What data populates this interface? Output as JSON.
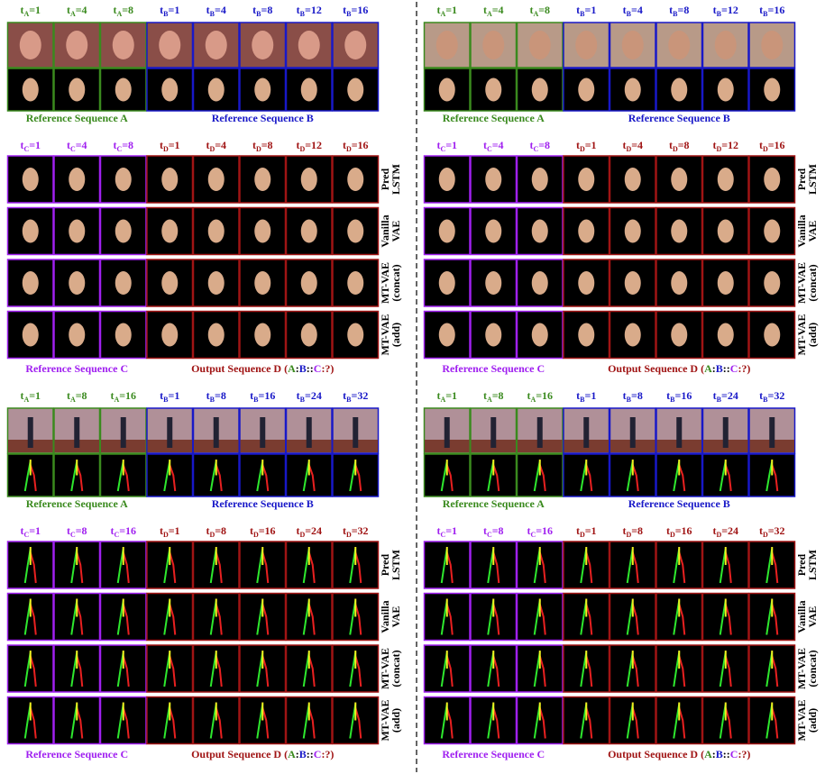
{
  "panels": [
    {
      "kind": "face",
      "top_labels": [
        {
          "t": "t",
          "sub": "A",
          "eq": "=1"
        },
        {
          "t": "t",
          "sub": "A",
          "eq": "=4"
        },
        {
          "t": "t",
          "sub": "A",
          "eq": "=8"
        },
        {
          "t": "t",
          "sub": "B",
          "eq": "=1"
        },
        {
          "t": "t",
          "sub": "B",
          "eq": "=4"
        },
        {
          "t": "t",
          "sub": "B",
          "eq": "=8"
        },
        {
          "t": "t",
          "sub": "B",
          "eq": "=12"
        },
        {
          "t": "t",
          "sub": "B",
          "eq": "=16"
        }
      ],
      "top_captions": [
        "Reference Sequence A",
        "Reference Sequence B"
      ],
      "bottom_labels": [
        {
          "t": "t",
          "sub": "C",
          "eq": "=1"
        },
        {
          "t": "t",
          "sub": "C",
          "eq": "=4"
        },
        {
          "t": "t",
          "sub": "C",
          "eq": "=8"
        },
        {
          "t": "t",
          "sub": "D",
          "eq": "=1"
        },
        {
          "t": "t",
          "sub": "D",
          "eq": "=4"
        },
        {
          "t": "t",
          "sub": "D",
          "eq": "=8"
        },
        {
          "t": "t",
          "sub": "D",
          "eq": "=12"
        },
        {
          "t": "t",
          "sub": "D",
          "eq": "=16"
        }
      ],
      "row_labels": [
        [
          "Pred",
          "LSTM"
        ],
        [
          "Vanilla",
          "VAE"
        ],
        [
          "MT-VAE",
          "(concat)"
        ],
        [
          "MT-VAE",
          "(add)"
        ]
      ],
      "caption_c": "Reference Sequence C",
      "caption_d": [
        "Output Sequence D (",
        "A",
        ":",
        "B",
        "::",
        "C",
        ":?)"
      ]
    },
    {
      "kind": "face",
      "top_labels": [
        {
          "t": "t",
          "sub": "A",
          "eq": "=1"
        },
        {
          "t": "t",
          "sub": "A",
          "eq": "=4"
        },
        {
          "t": "t",
          "sub": "A",
          "eq": "=8"
        },
        {
          "t": "t",
          "sub": "B",
          "eq": "=1"
        },
        {
          "t": "t",
          "sub": "B",
          "eq": "=4"
        },
        {
          "t": "t",
          "sub": "B",
          "eq": "=8"
        },
        {
          "t": "t",
          "sub": "B",
          "eq": "=12"
        },
        {
          "t": "t",
          "sub": "B",
          "eq": "=16"
        }
      ],
      "top_captions": [
        "Reference Sequence A",
        "Reference Sequence B"
      ],
      "bottom_labels": [
        {
          "t": "t",
          "sub": "C",
          "eq": "=1"
        },
        {
          "t": "t",
          "sub": "C",
          "eq": "=4"
        },
        {
          "t": "t",
          "sub": "C",
          "eq": "=8"
        },
        {
          "t": "t",
          "sub": "D",
          "eq": "=1"
        },
        {
          "t": "t",
          "sub": "D",
          "eq": "=4"
        },
        {
          "t": "t",
          "sub": "D",
          "eq": "=8"
        },
        {
          "t": "t",
          "sub": "D",
          "eq": "=12"
        },
        {
          "t": "t",
          "sub": "D",
          "eq": "=16"
        }
      ],
      "row_labels": [
        [
          "Pred",
          "LSTM"
        ],
        [
          "Vanilla",
          "VAE"
        ],
        [
          "MT-VAE",
          "(concat)"
        ],
        [
          "MT-VAE",
          "(add)"
        ]
      ],
      "caption_c": "Reference Sequence C",
      "caption_d": [
        "Output Sequence D (",
        "A",
        ":",
        "B",
        "::",
        "C",
        ":?)"
      ]
    },
    {
      "kind": "pose",
      "top_labels": [
        {
          "t": "t",
          "sub": "A",
          "eq": "=1"
        },
        {
          "t": "t",
          "sub": "A",
          "eq": "=8"
        },
        {
          "t": "t",
          "sub": "A",
          "eq": "=16"
        },
        {
          "t": "t",
          "sub": "B",
          "eq": "=1"
        },
        {
          "t": "t",
          "sub": "B",
          "eq": "=8"
        },
        {
          "t": "t",
          "sub": "B",
          "eq": "=16"
        },
        {
          "t": "t",
          "sub": "B",
          "eq": "=24"
        },
        {
          "t": "t",
          "sub": "B",
          "eq": "=32"
        }
      ],
      "top_captions": [
        "Reference Sequence A",
        "Reference Sequence B"
      ],
      "bottom_labels": [
        {
          "t": "t",
          "sub": "C",
          "eq": "=1"
        },
        {
          "t": "t",
          "sub": "C",
          "eq": "=8"
        },
        {
          "t": "t",
          "sub": "C",
          "eq": "=16"
        },
        {
          "t": "t",
          "sub": "D",
          "eq": "=1"
        },
        {
          "t": "t",
          "sub": "D",
          "eq": "=8"
        },
        {
          "t": "t",
          "sub": "D",
          "eq": "=16"
        },
        {
          "t": "t",
          "sub": "D",
          "eq": "=24"
        },
        {
          "t": "t",
          "sub": "D",
          "eq": "=32"
        }
      ],
      "row_labels": [
        [
          "Pred",
          "LSTM"
        ],
        [
          "Vanilla",
          "VAE"
        ],
        [
          "MT-VAE",
          "(concat)"
        ],
        [
          "MT-VAE",
          "(add)"
        ]
      ],
      "caption_c": "Reference Sequence C",
      "caption_d": [
        "Output Sequence D (",
        "A",
        ":",
        "B",
        "::",
        "C",
        ":?)"
      ]
    },
    {
      "kind": "pose",
      "top_labels": [
        {
          "t": "t",
          "sub": "A",
          "eq": "=1"
        },
        {
          "t": "t",
          "sub": "A",
          "eq": "=8"
        },
        {
          "t": "t",
          "sub": "A",
          "eq": "=16"
        },
        {
          "t": "t",
          "sub": "B",
          "eq": "=1"
        },
        {
          "t": "t",
          "sub": "B",
          "eq": "=8"
        },
        {
          "t": "t",
          "sub": "B",
          "eq": "=16"
        },
        {
          "t": "t",
          "sub": "B",
          "eq": "=24"
        },
        {
          "t": "t",
          "sub": "B",
          "eq": "=32"
        }
      ],
      "top_captions": [
        "Reference Sequence A",
        "Reference Sequence B"
      ],
      "bottom_labels": [
        {
          "t": "t",
          "sub": "C",
          "eq": "=1"
        },
        {
          "t": "t",
          "sub": "C",
          "eq": "=8"
        },
        {
          "t": "t",
          "sub": "C",
          "eq": "=16"
        },
        {
          "t": "t",
          "sub": "D",
          "eq": "=1"
        },
        {
          "t": "t",
          "sub": "D",
          "eq": "=8"
        },
        {
          "t": "t",
          "sub": "D",
          "eq": "=16"
        },
        {
          "t": "t",
          "sub": "D",
          "eq": "=24"
        },
        {
          "t": "t",
          "sub": "D",
          "eq": "=32"
        }
      ],
      "row_labels": [
        [
          "Pred",
          "LSTM"
        ],
        [
          "Vanilla",
          "VAE"
        ],
        [
          "MT-VAE",
          "(concat)"
        ],
        [
          "MT-VAE",
          "(add)"
        ]
      ],
      "caption_c": "Reference Sequence C",
      "caption_d": [
        "Output Sequence D (",
        "A",
        ":",
        "B",
        "::",
        "C",
        ":?)"
      ]
    }
  ]
}
